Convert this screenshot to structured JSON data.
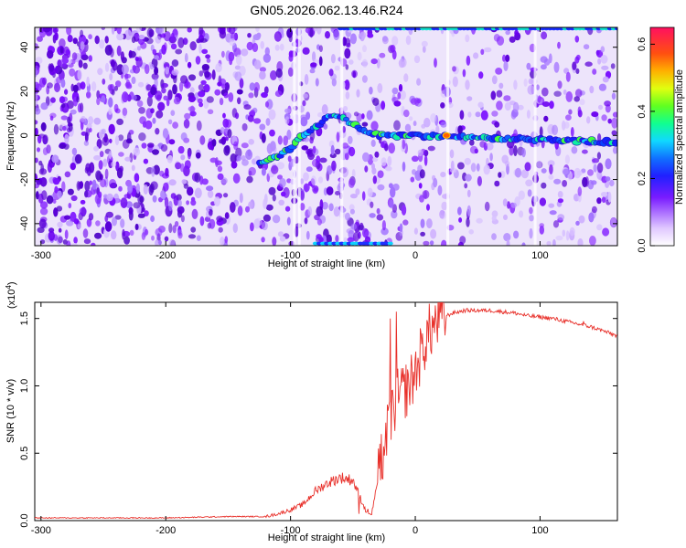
{
  "title": "GN05.2026.062.13.46.R24",
  "chart_data": [
    {
      "type": "heatmap",
      "xlabel": "Height of straight line (km)",
      "ylabel": "Frequency (Hz)",
      "xlim": [
        -305,
        162
      ],
      "ylim": [
        -50,
        49
      ],
      "x_ticks": [
        -300,
        -200,
        -100,
        0,
        100
      ],
      "y_ticks": [
        -40,
        -20,
        0,
        20,
        40
      ],
      "colorbar": {
        "label": "Normalized spectral amplitude",
        "range": [
          0,
          0.65
        ],
        "ticks": [
          "0.0",
          "0.2",
          "0.4",
          "0.6"
        ],
        "ticks_values": [
          0,
          0.2,
          0.4,
          0.6
        ]
      },
      "ridge": {
        "x": [
          -125,
          -110,
          -100,
          -90,
          -80,
          -70,
          -60,
          -50,
          -40,
          -30,
          -20,
          0,
          50,
          100,
          162
        ],
        "y": [
          -12,
          -10,
          -6,
          0,
          4,
          8,
          9,
          5,
          2,
          0,
          0,
          0,
          -1,
          -2,
          -3
        ]
      }
    },
    {
      "type": "line",
      "xlabel": "Height of straight line (km)",
      "ylabel": "SNR (10 * v/v)",
      "y_multiplier": "(x10",
      "y_multiplier_exp": "4",
      "y_multiplier_close": ")",
      "xlim": [
        -305,
        162
      ],
      "ylim": [
        0,
        1.62
      ],
      "x_ticks": [
        -300,
        -200,
        -100,
        0,
        100
      ],
      "y_ticks": [
        "0.0",
        "0.5",
        "1.0",
        "1.5"
      ],
      "y_ticks_values": [
        0,
        0.5,
        1.0,
        1.5
      ],
      "series": [
        {
          "color": "#e8302a",
          "x": [
            -305,
            -200,
            -150,
            -120,
            -110,
            -100,
            -90,
            -80,
            -70,
            -60,
            -50,
            -40,
            -35,
            -30,
            -25,
            -20,
            -15,
            -10,
            -5,
            0,
            5,
            10,
            15,
            20,
            25,
            30,
            40,
            50,
            60,
            70,
            80,
            90,
            100,
            110,
            120,
            130,
            140,
            150,
            162
          ],
          "y": [
            0.02,
            0.02,
            0.03,
            0.03,
            0.05,
            0.08,
            0.12,
            0.22,
            0.28,
            0.32,
            0.3,
            0.08,
            0.05,
            0.3,
            0.55,
            0.75,
            0.9,
            0.95,
            1.0,
            1.1,
            1.25,
            1.38,
            1.45,
            1.5,
            1.52,
            1.54,
            1.56,
            1.56,
            1.56,
            1.55,
            1.54,
            1.52,
            1.51,
            1.5,
            1.48,
            1.46,
            1.44,
            1.41,
            1.37
          ],
          "spikes": [
            [
              -45,
              0.05
            ],
            [
              -37,
              0.05
            ],
            [
              -28,
              0.3
            ],
            [
              -20,
              1.5
            ],
            [
              -15,
              1.55
            ],
            [
              135,
              1.48
            ]
          ]
        }
      ]
    }
  ]
}
